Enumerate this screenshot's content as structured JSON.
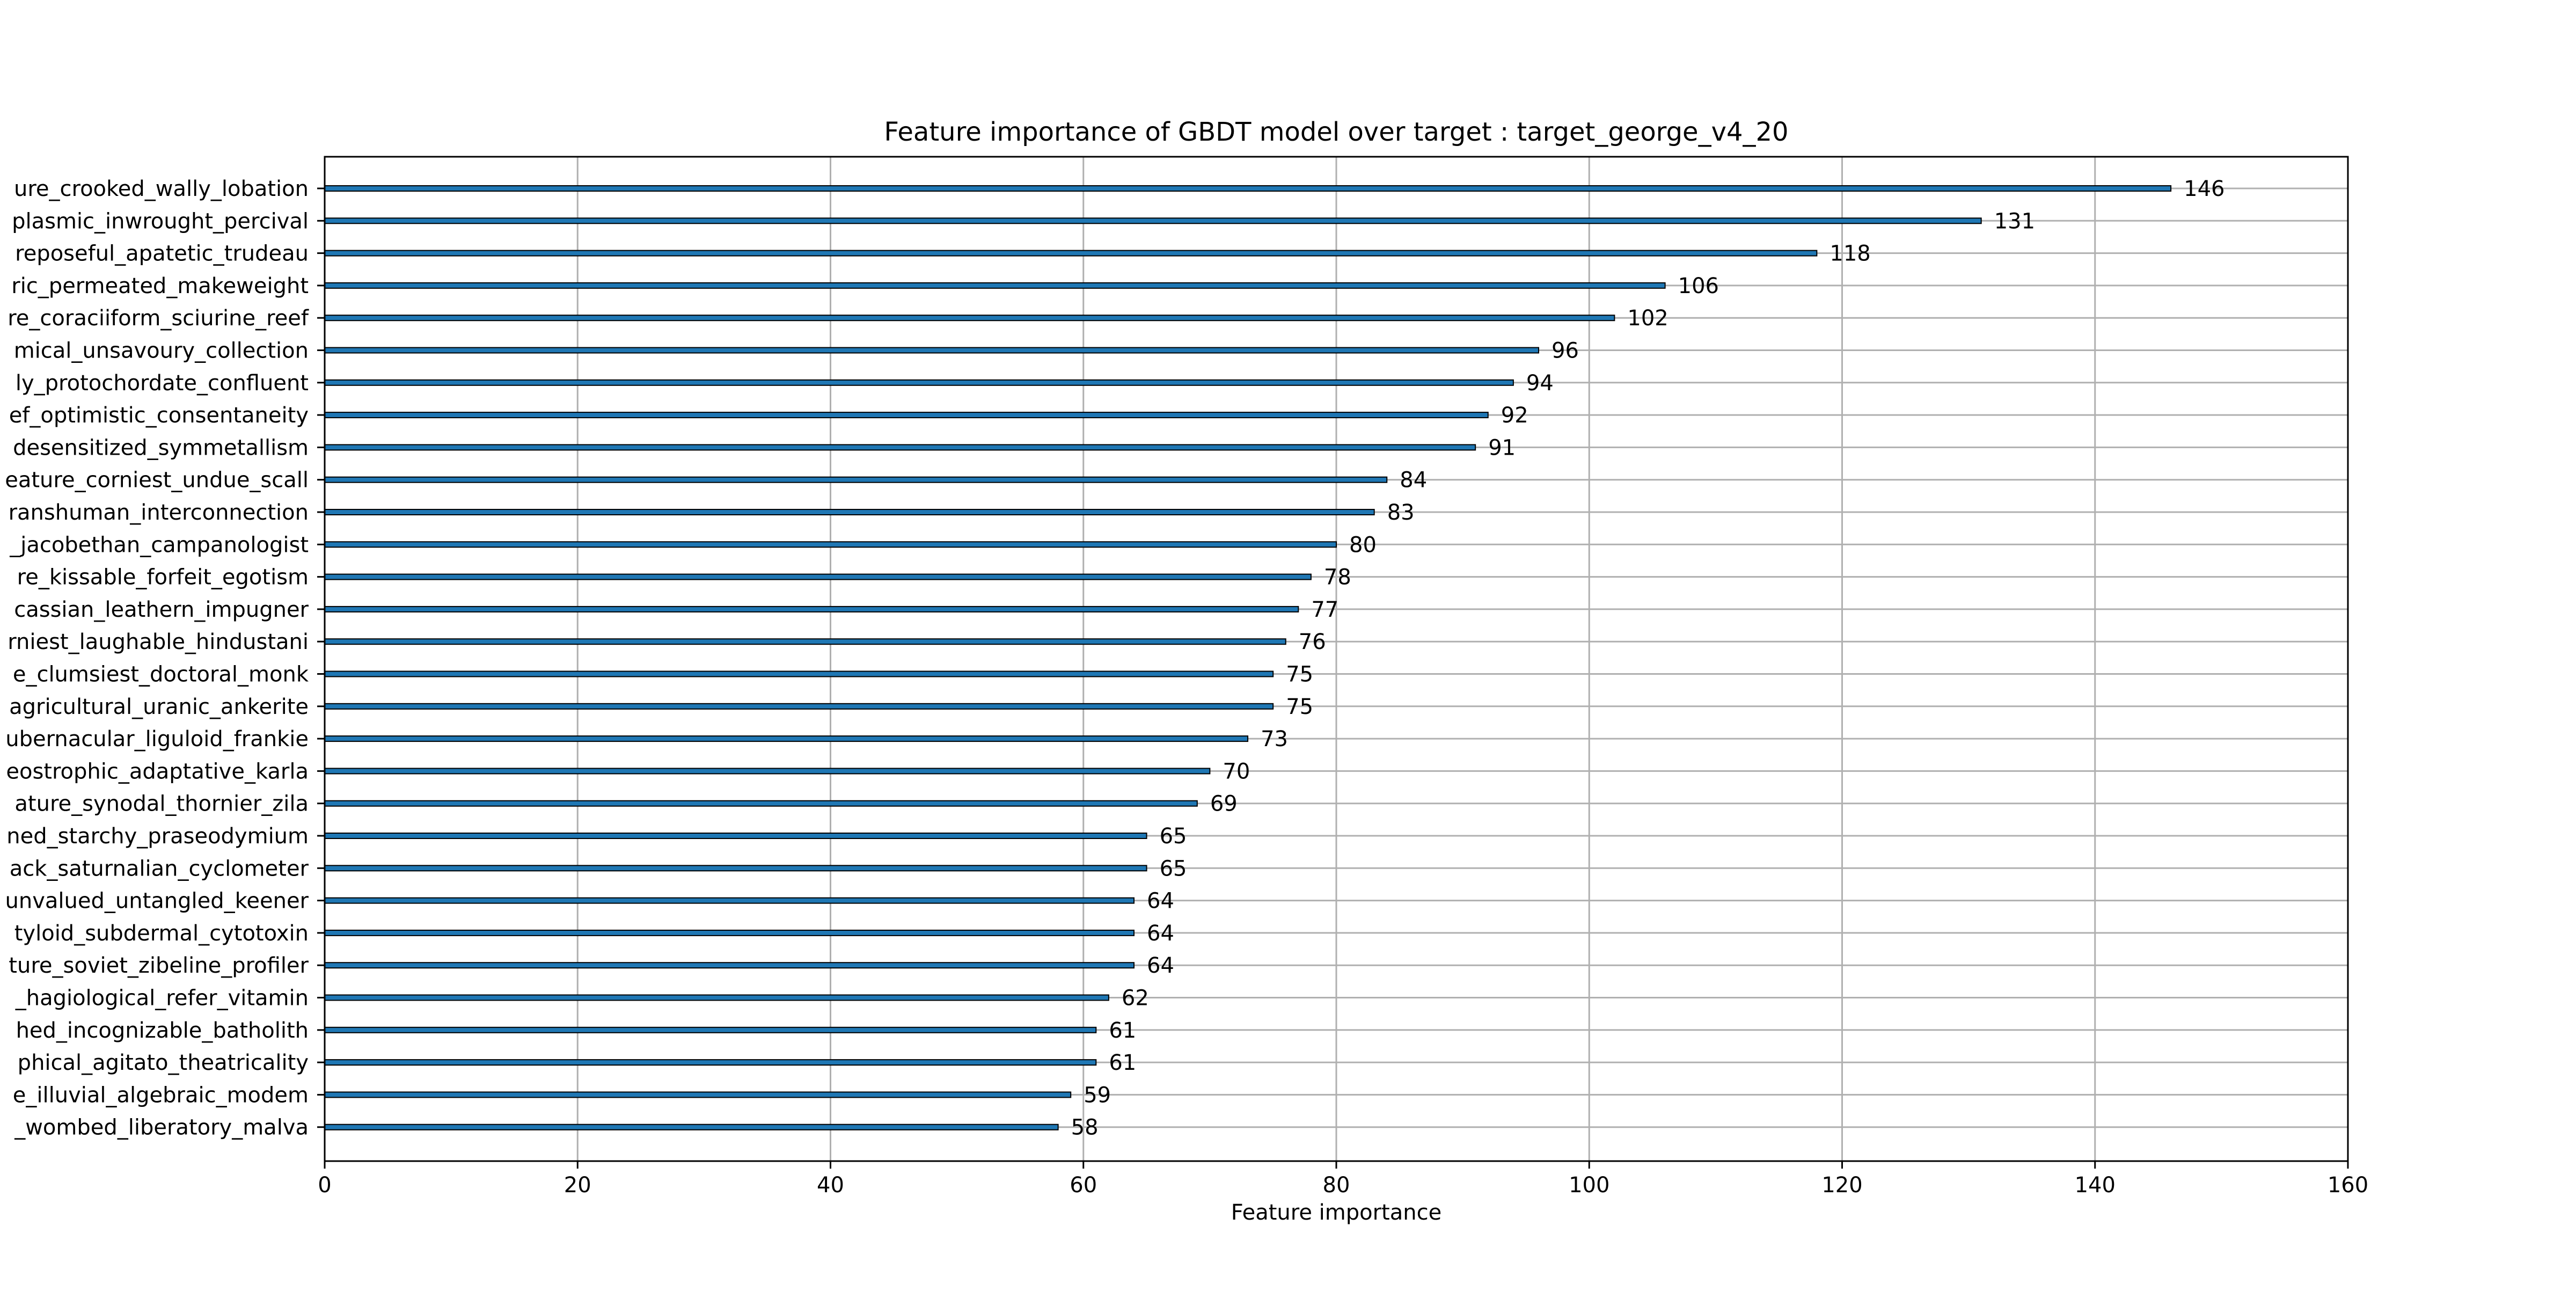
{
  "chart_data": {
    "type": "bar",
    "orientation": "horizontal",
    "title": "Feature importance of GBDT model over target : target_george_v4_20",
    "xlabel": "Feature importance",
    "ylabel": "",
    "xlim": [
      0,
      160
    ],
    "xticks": [
      0,
      20,
      40,
      60,
      80,
      100,
      120,
      140,
      160
    ],
    "grid": true,
    "colors": {
      "bar_fill": "#1f77b4",
      "bar_edge": "#000000",
      "grid": "#b0b0b0",
      "axis": "#000000"
    },
    "categories": [
      "ure_crooked_wally_lobation",
      "plasmic_inwrought_percival",
      "reposeful_apatetic_trudeau",
      "ric_permeated_makeweight",
      "re_coraciiform_sciurine_reef",
      "mical_unsavoury_collection",
      "ly_protochordate_confluent",
      "ef_optimistic_consentaneity",
      "desensitized_symmetallism",
      "eature_corniest_undue_scall",
      "ranshuman_interconnection",
      "_jacobethan_campanologist",
      "re_kissable_forfeit_egotism",
      "cassian_leathern_impugner",
      "rniest_laughable_hindustani",
      "e_clumsiest_doctoral_monk",
      "agricultural_uranic_ankerite",
      "ubernacular_liguloid_frankie",
      "eostrophic_adaptative_karla",
      "ature_synodal_thornier_zila",
      "ned_starchy_praseodymium",
      "ack_saturnalian_cyclometer",
      "unvalued_untangled_keener",
      "tyloid_subdermal_cytotoxin",
      "ture_soviet_zibeline_profiler",
      "_hagiological_refer_vitamin",
      "hed_incognizable_batholith",
      "phical_agitato_theatricality",
      "e_illuvial_algebraic_modem",
      "_wombed_liberatory_malva"
    ],
    "values": [
      146,
      131,
      118,
      106,
      102,
      96,
      94,
      92,
      91,
      84,
      83,
      80,
      78,
      77,
      76,
      75,
      75,
      73,
      70,
      69,
      65,
      65,
      64,
      64,
      64,
      62,
      61,
      61,
      59,
      58
    ]
  }
}
